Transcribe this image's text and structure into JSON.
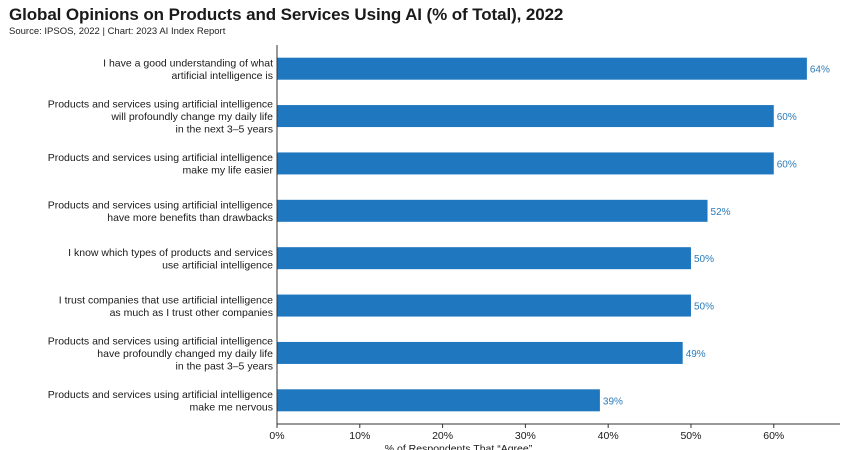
{
  "header": {
    "title": "Global Opinions on Products and Services Using AI (% of Total), 2022",
    "subtitle": "Source: IPSOS, 2022 | Chart: 2023 AI Index Report"
  },
  "colors": {
    "bar": "#1f77c0",
    "label": "#2b7bba",
    "axis": "#333333"
  },
  "chart_data": {
    "type": "bar",
    "orientation": "horizontal",
    "title": "Global Opinions on Products and Services Using AI (% of Total), 2022",
    "xlabel": "% of Respondents That “Agree”",
    "ylabel": "",
    "xlim": [
      0,
      68
    ],
    "xticks": [
      "0%",
      "10%",
      "20%",
      "30%",
      "40%",
      "50%",
      "60%"
    ],
    "categories": [
      [
        "I have a good understanding of what",
        "artificial intelligence is"
      ],
      [
        "Products and services using artificial intelligence",
        "will profoundly change my daily life",
        "in the next 3–5 years"
      ],
      [
        "Products and services using artificial intelligence",
        "make my life easier"
      ],
      [
        "Products and services using artificial intelligence",
        "have more benefits than drawbacks"
      ],
      [
        "I know which types of products and services",
        "use artificial intelligence"
      ],
      [
        "I trust companies that use artificial intelligence",
        "as much as I trust other companies"
      ],
      [
        "Products and services using artificial intelligence",
        "have profoundly changed my daily life",
        "in the past 3–5 years"
      ],
      [
        "Products and services using artificial intelligence",
        "make me nervous"
      ]
    ],
    "values": [
      64,
      60,
      60,
      52,
      50,
      50,
      49,
      39
    ],
    "value_labels": [
      "64%",
      "60%",
      "60%",
      "52%",
      "50%",
      "50%",
      "49%",
      "39%"
    ],
    "grid": false
  }
}
